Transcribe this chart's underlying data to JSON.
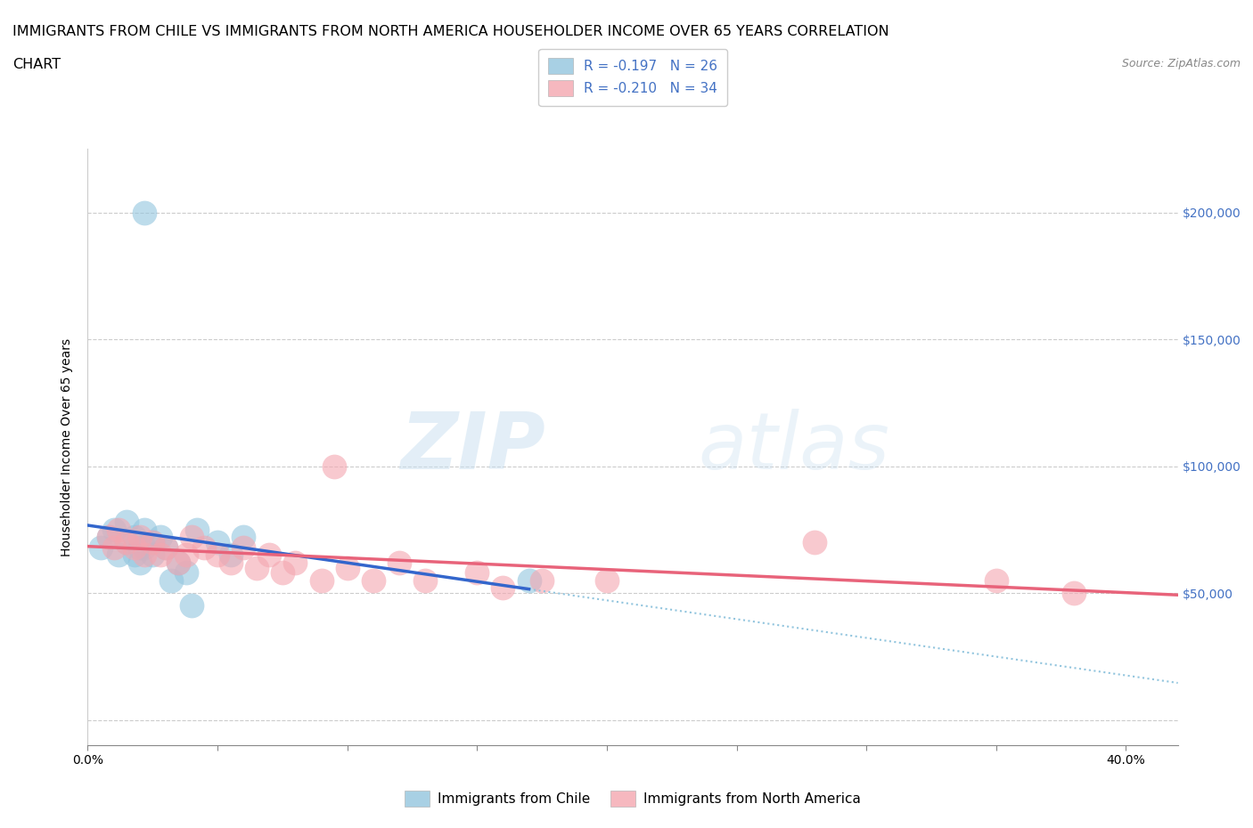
{
  "title_line1": "IMMIGRANTS FROM CHILE VS IMMIGRANTS FROM NORTH AMERICA HOUSEHOLDER INCOME OVER 65 YEARS CORRELATION",
  "title_line2": "CHART",
  "source_text": "Source: ZipAtlas.com",
  "ylabel": "Householder Income Over 65 years",
  "legend_label1": "Immigrants from Chile",
  "legend_label2": "Immigrants from North America",
  "R1": -0.197,
  "N1": 26,
  "R2": -0.21,
  "N2": 34,
  "color_chile": "#92c5de",
  "color_na": "#f4a6b0",
  "trend_color_chile": "#3366cc",
  "trend_color_na": "#e8637a",
  "dashed_color": "#92c5de",
  "background_color": "#ffffff",
  "watermark_zip": "ZIP",
  "watermark_atlas": "atlas",
  "xmin": 0.0,
  "xmax": 0.42,
  "ymin": -10000,
  "ymax": 225000,
  "yticks": [
    0,
    50000,
    100000,
    150000,
    200000
  ],
  "ytick_labels_right": [
    "",
    "$50,000",
    "$100,000",
    "$150,000",
    "$200,000"
  ],
  "xtick_positions": [
    0.0,
    0.05,
    0.1,
    0.15,
    0.2,
    0.25,
    0.3,
    0.35,
    0.4
  ],
  "xtick_labels": [
    "0.0%",
    "",
    "",
    "",
    "",
    "",
    "",
    "",
    "40.0%"
  ],
  "grid_color": "#cccccc",
  "title_fontsize": 11.5,
  "axis_label_fontsize": 10,
  "tick_fontsize": 10,
  "legend_fontsize": 11,
  "tick_color_right": "#4472c4",
  "chile_x": [
    0.005,
    0.008,
    0.01,
    0.012,
    0.015,
    0.015,
    0.018,
    0.018,
    0.02,
    0.02,
    0.022,
    0.022,
    0.025,
    0.025,
    0.028,
    0.03,
    0.032,
    0.035,
    0.038,
    0.04,
    0.042,
    0.05,
    0.055,
    0.06,
    0.17,
    0.022
  ],
  "chile_y": [
    68000,
    72000,
    75000,
    65000,
    78000,
    70000,
    72000,
    65000,
    68000,
    62000,
    75000,
    68000,
    70000,
    65000,
    72000,
    68000,
    55000,
    62000,
    58000,
    45000,
    75000,
    70000,
    65000,
    72000,
    55000,
    200000
  ],
  "na_x": [
    0.008,
    0.01,
    0.012,
    0.015,
    0.018,
    0.02,
    0.022,
    0.025,
    0.028,
    0.03,
    0.035,
    0.038,
    0.04,
    0.045,
    0.05,
    0.055,
    0.06,
    0.065,
    0.07,
    0.075,
    0.08,
    0.09,
    0.095,
    0.1,
    0.11,
    0.12,
    0.13,
    0.15,
    0.16,
    0.175,
    0.2,
    0.28,
    0.35,
    0.38
  ],
  "na_y": [
    72000,
    68000,
    75000,
    70000,
    68000,
    72000,
    65000,
    70000,
    65000,
    68000,
    62000,
    65000,
    72000,
    68000,
    65000,
    62000,
    68000,
    60000,
    65000,
    58000,
    62000,
    55000,
    100000,
    60000,
    55000,
    62000,
    55000,
    58000,
    52000,
    55000,
    55000,
    70000,
    55000,
    50000
  ]
}
